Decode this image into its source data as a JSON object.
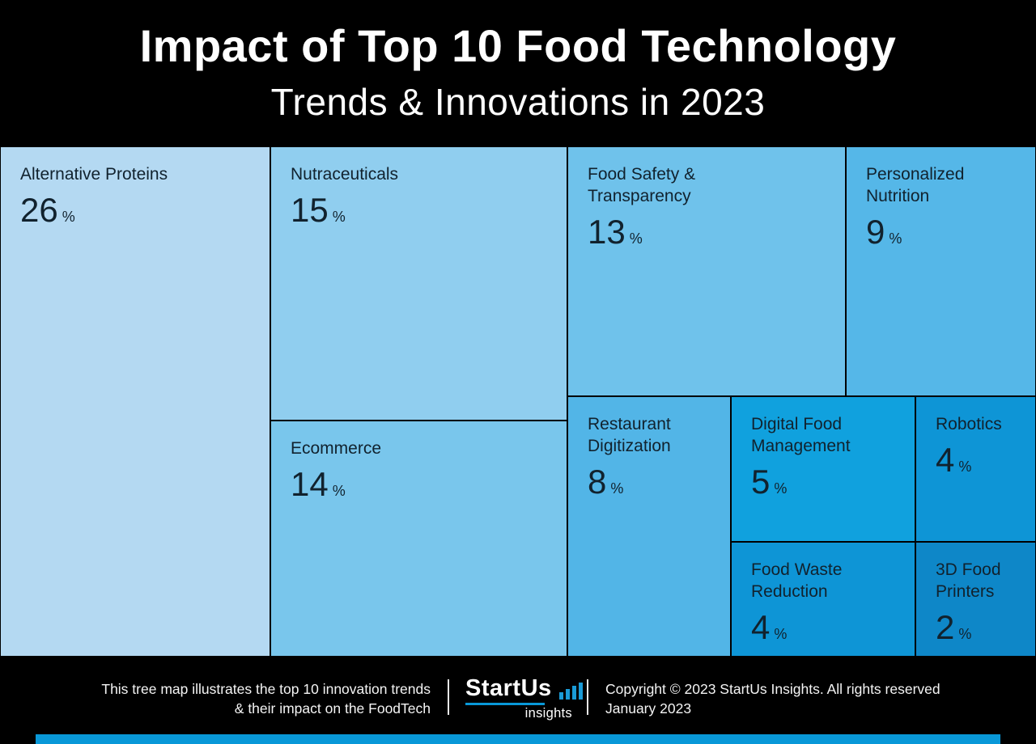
{
  "title": {
    "line1": "Impact of Top 10 Food Technology",
    "line2": "Trends & Innovations in 2023"
  },
  "chart_data": {
    "type": "treemap",
    "title": "Impact of Top 10 Food Technology Trends & Innovations in 2023",
    "unit": "%",
    "value_unit_note": "percent impact share",
    "cells": [
      {
        "name": "Alternative Proteins",
        "value": 26,
        "color": "#b4d9f2"
      },
      {
        "name": "Nutraceuticals",
        "value": 15,
        "color": "#90ceef"
      },
      {
        "name": "Ecommerce",
        "value": 14,
        "color": "#79c6ec"
      },
      {
        "name": "Food Safety &\nTransparency",
        "value": 13,
        "color": "#6fc2eb"
      },
      {
        "name": "Personalized\nNutrition",
        "value": 9,
        "color": "#55b7e8"
      },
      {
        "name": "Restaurant\nDigitization",
        "value": 8,
        "color": "#52b5e7"
      },
      {
        "name": "Digital Food\nManagement",
        "value": 5,
        "color": "#10a1de"
      },
      {
        "name": "Robotics",
        "value": 4,
        "color": "#0e95d6"
      },
      {
        "name": "Food Waste\nReduction",
        "value": 4,
        "color": "#0e95d6"
      },
      {
        "name": "3D Food\nPrinters",
        "value": 2,
        "color": "#0e87c8"
      }
    ]
  },
  "footer": {
    "caption_line1": "This tree map illustrates the top 10 innovation trends",
    "caption_line2": "& their impact on the FoodTech",
    "logo": {
      "name": "StartUs",
      "sub": "insights"
    },
    "copyright_line1": "Copyright © 2023 StartUs Insights. All rights reserved",
    "copyright_line2": "January 2023"
  },
  "colors": {
    "background": "#000000",
    "accent_blue": "#0998d8",
    "cell_text": "#11222e",
    "title_text": "#ffffff"
  }
}
